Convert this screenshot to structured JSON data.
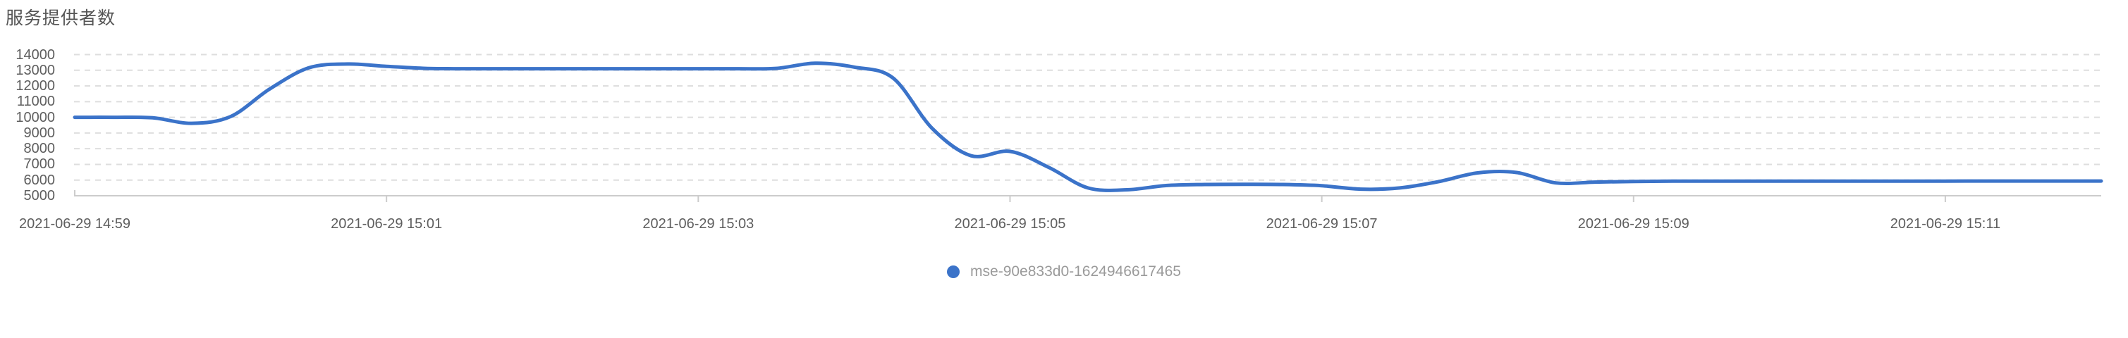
{
  "header": {
    "title": "服务提供者数"
  },
  "colors": {
    "line": "#3b73c9",
    "grid": "#dedede",
    "axis": "#cccccc",
    "axis_label": "#5e5e5e",
    "title": "#555555",
    "legend_text": "#9a9a9a",
    "background": "#ffffff"
  },
  "legend": {
    "position": "bottom-center",
    "items": [
      {
        "label": "mse-90e833d0-1624946617465",
        "color": "#3b73c9"
      }
    ]
  },
  "chart_data": {
    "type": "line",
    "title": "服务提供者数",
    "xlabel": "",
    "ylabel": "",
    "ylim": [
      5000,
      14000
    ],
    "y_ticks": [
      14000,
      13000,
      12000,
      11000,
      10000,
      9000,
      8000,
      7000,
      6000,
      5000
    ],
    "x_ticks": [
      "2021-06-29 14:59",
      "2021-06-29 15:01",
      "2021-06-29 15:03",
      "2021-06-29 15:05",
      "2021-06-29 15:07",
      "2021-06-29 15:09",
      "2021-06-29 15:11"
    ],
    "x_tick_interval_minutes": 2,
    "grid": {
      "horizontal_dashed": true,
      "vertical": false
    },
    "legend_position": "bottom-center",
    "series": [
      {
        "name": "mse-90e833d0-1624946617465",
        "color": "#3b73c9",
        "smooth": true,
        "points": [
          [
            "2021-06-29 14:59:00",
            10000
          ],
          [
            "2021-06-29 14:59:15",
            10000
          ],
          [
            "2021-06-29 14:59:30",
            9970
          ],
          [
            "2021-06-29 14:59:45",
            9620
          ],
          [
            "2021-06-29 15:00:00",
            10050
          ],
          [
            "2021-06-29 15:00:15",
            11800
          ],
          [
            "2021-06-29 15:00:30",
            13150
          ],
          [
            "2021-06-29 15:00:45",
            13400
          ],
          [
            "2021-06-29 15:01:00",
            13250
          ],
          [
            "2021-06-29 15:01:15",
            13120
          ],
          [
            "2021-06-29 15:01:30",
            13100
          ],
          [
            "2021-06-29 15:01:45",
            13100
          ],
          [
            "2021-06-29 15:02:00",
            13100
          ],
          [
            "2021-06-29 15:02:15",
            13100
          ],
          [
            "2021-06-29 15:02:30",
            13100
          ],
          [
            "2021-06-29 15:02:45",
            13100
          ],
          [
            "2021-06-29 15:03:00",
            13100
          ],
          [
            "2021-06-29 15:03:15",
            13100
          ],
          [
            "2021-06-29 15:03:30",
            13120
          ],
          [
            "2021-06-29 15:03:45",
            13450
          ],
          [
            "2021-06-29 15:04:00",
            13200
          ],
          [
            "2021-06-29 15:04:15",
            12500
          ],
          [
            "2021-06-29 15:04:30",
            9300
          ],
          [
            "2021-06-29 15:04:45",
            7550
          ],
          [
            "2021-06-29 15:05:00",
            7830
          ],
          [
            "2021-06-29 15:05:15",
            6800
          ],
          [
            "2021-06-29 15:05:30",
            5500
          ],
          [
            "2021-06-29 15:05:45",
            5380
          ],
          [
            "2021-06-29 15:06:00",
            5650
          ],
          [
            "2021-06-29 15:06:15",
            5720
          ],
          [
            "2021-06-29 15:06:30",
            5730
          ],
          [
            "2021-06-29 15:06:45",
            5720
          ],
          [
            "2021-06-29 15:07:00",
            5640
          ],
          [
            "2021-06-29 15:07:15",
            5420
          ],
          [
            "2021-06-29 15:07:30",
            5500
          ],
          [
            "2021-06-29 15:07:45",
            5900
          ],
          [
            "2021-06-29 15:08:00",
            6460
          ],
          [
            "2021-06-29 15:08:15",
            6480
          ],
          [
            "2021-06-29 15:08:30",
            5820
          ],
          [
            "2021-06-29 15:08:45",
            5870
          ],
          [
            "2021-06-29 15:09:00",
            5910
          ],
          [
            "2021-06-29 15:09:15",
            5930
          ],
          [
            "2021-06-29 15:09:30",
            5930
          ],
          [
            "2021-06-29 15:09:45",
            5930
          ],
          [
            "2021-06-29 15:10:00",
            5930
          ],
          [
            "2021-06-29 15:10:15",
            5930
          ],
          [
            "2021-06-29 15:10:30",
            5930
          ],
          [
            "2021-06-29 15:10:45",
            5930
          ],
          [
            "2021-06-29 15:11:00",
            5930
          ],
          [
            "2021-06-29 15:11:15",
            5940
          ],
          [
            "2021-06-29 15:11:30",
            5940
          ],
          [
            "2021-06-29 15:11:45",
            5940
          ],
          [
            "2021-06-29 15:12:00",
            5940
          ]
        ]
      }
    ]
  }
}
